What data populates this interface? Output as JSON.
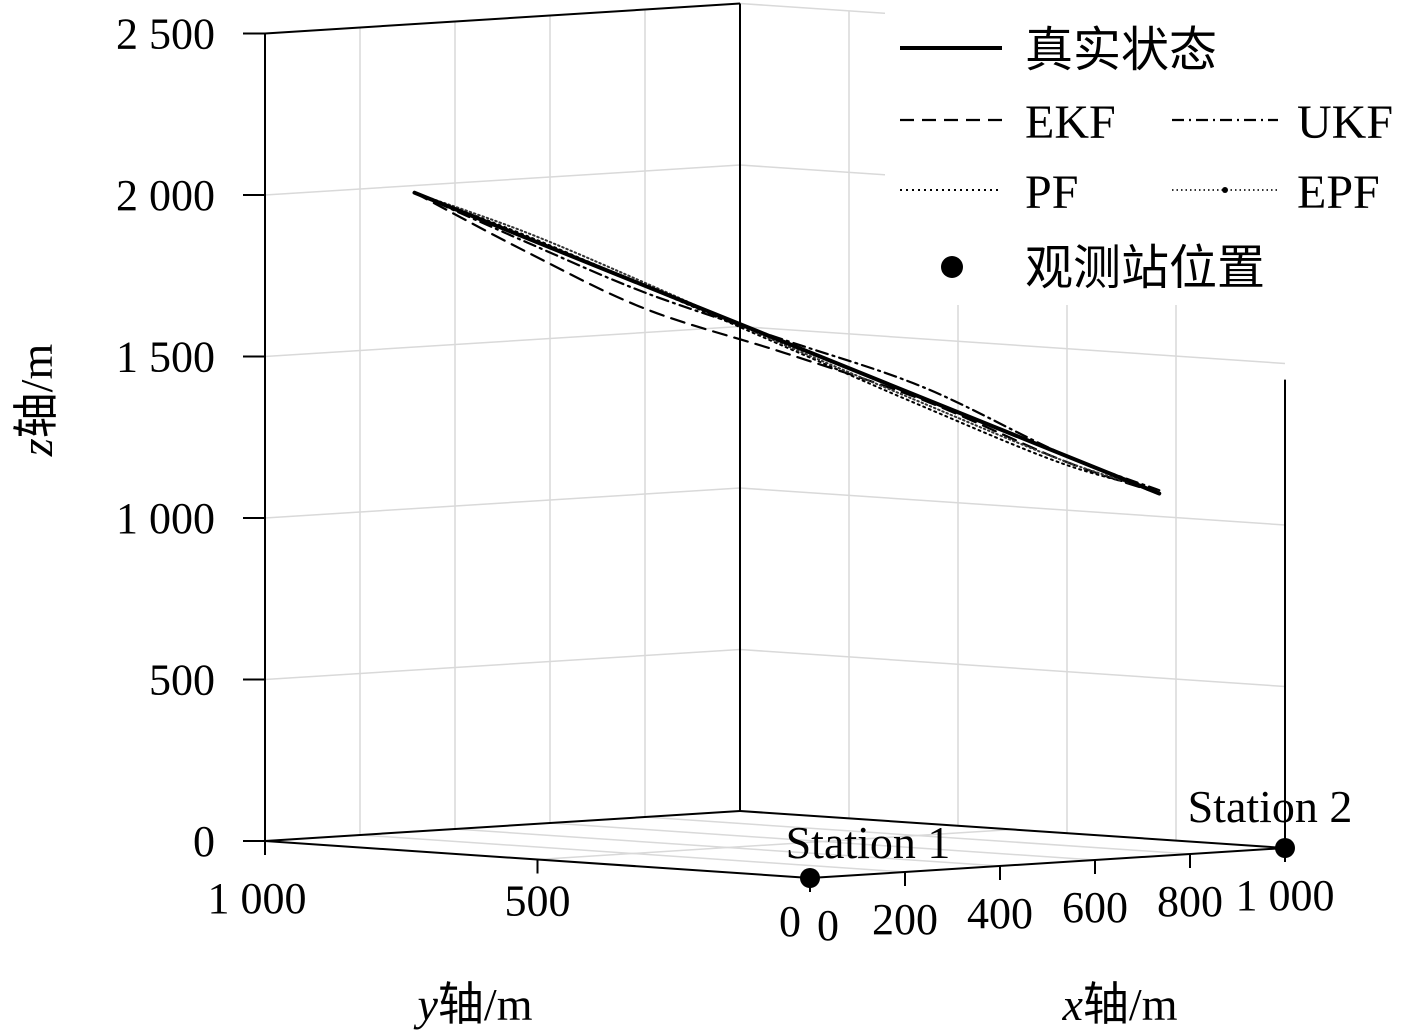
{
  "chart_data": {
    "type": "line3d",
    "zlabel_italic": "z",
    "zlabel_rest": "轴/m",
    "ylabel_italic": "y",
    "ylabel_rest": "轴/m",
    "xlabel_italic": "x",
    "xlabel_rest": "轴/m",
    "z_ticks": [
      "0",
      "500",
      "1 000",
      "1 500",
      "2 000",
      "2 500"
    ],
    "z_tick_values": [
      0,
      500,
      1000,
      1500,
      2000,
      2500
    ],
    "y_ticks": [
      "1 000",
      "500",
      "0"
    ],
    "y_tick_values": [
      1000,
      500,
      0
    ],
    "x_ticks": [
      "0",
      "200",
      "400",
      "600",
      "800",
      "1 000"
    ],
    "x_tick_values": [
      0,
      200,
      400,
      600,
      800,
      1000
    ],
    "zlim": [
      0,
      2500
    ],
    "xlim": [
      0,
      1000
    ],
    "ylim": [
      0,
      1000
    ],
    "grid": true,
    "legend_position": "top-right",
    "series": [
      {
        "name": "真实状态",
        "style": "solid",
        "x": [
          200,
          850
        ],
        "y": [
          900,
          100
        ],
        "z": [
          2000,
          1100
        ]
      },
      {
        "name": "EKF",
        "style": "dashed",
        "x": [
          200,
          300,
          400,
          520,
          640,
          760,
          850
        ],
        "y": [
          900,
          780,
          650,
          500,
          350,
          200,
          100
        ],
        "z": [
          2000,
          1820,
          1650,
          1520,
          1380,
          1200,
          1100
        ]
      },
      {
        "name": "UKF",
        "style": "dashdot",
        "x": [
          200,
          300,
          400,
          520,
          640,
          760,
          850
        ],
        "y": [
          900,
          780,
          650,
          500,
          350,
          200,
          100
        ],
        "z": [
          2000,
          1850,
          1700,
          1560,
          1420,
          1220,
          1110
        ]
      },
      {
        "name": "PF",
        "style": "dotted",
        "x": [
          200,
          300,
          400,
          520,
          640,
          760,
          850
        ],
        "y": [
          900,
          780,
          650,
          500,
          350,
          200,
          100
        ],
        "z": [
          2000,
          1870,
          1720,
          1540,
          1360,
          1190,
          1110
        ]
      },
      {
        "name": "EPF",
        "style": "dotted-marker",
        "x": [
          200,
          300,
          400,
          520,
          640,
          760,
          850
        ],
        "y": [
          900,
          780,
          650,
          500,
          350,
          200,
          100
        ],
        "z": [
          2000,
          1880,
          1730,
          1545,
          1370,
          1200,
          1105
        ]
      }
    ],
    "stations": [
      {
        "label": "Station 1",
        "x": 0,
        "y": 0,
        "z": 0
      },
      {
        "label": "Station 2",
        "x": 1000,
        "y": 0,
        "z": 0
      }
    ],
    "station_legend": "观测站位置"
  }
}
